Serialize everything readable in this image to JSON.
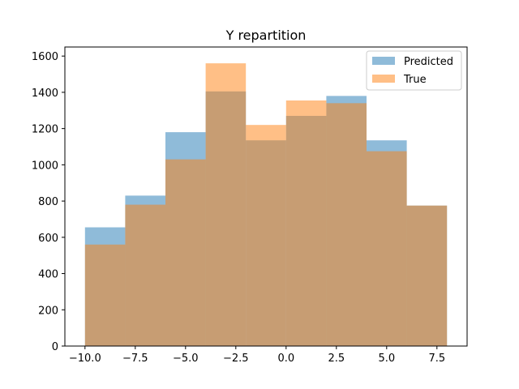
{
  "chart_data": {
    "type": "bar",
    "title": "Y repartition",
    "xlabel": "",
    "ylabel": "",
    "bin_edges": [
      -10,
      -8,
      -6,
      -4,
      -2,
      0,
      2,
      4,
      6,
      8
    ],
    "series": [
      {
        "name": "Predicted",
        "values": [
          655,
          830,
          1180,
          1405,
          1135,
          1270,
          1380,
          1135,
          775
        ],
        "color": "#1f77b4",
        "alpha": 0.5
      },
      {
        "name": "True",
        "values": [
          560,
          780,
          1030,
          1560,
          1220,
          1355,
          1340,
          1075,
          775
        ],
        "color": "#ff7f0e",
        "alpha": 0.5
      }
    ],
    "xlim": [
      -11,
      9
    ],
    "ylim": [
      0,
      1650
    ],
    "xticks": [
      -10.0,
      -7.5,
      -5.0,
      -2.5,
      0.0,
      2.5,
      5.0,
      7.5
    ],
    "xtick_labels": [
      "−10.0",
      "−7.5",
      "−5.0",
      "−2.5",
      "0.0",
      "2.5",
      "5.0",
      "7.5"
    ],
    "yticks": [
      0,
      200,
      400,
      600,
      800,
      1000,
      1200,
      1400,
      1600
    ],
    "ytick_labels": [
      "0",
      "200",
      "400",
      "600",
      "800",
      "1000",
      "1200",
      "1400",
      "1600"
    ],
    "grid": false,
    "legend_position": "top-right"
  }
}
